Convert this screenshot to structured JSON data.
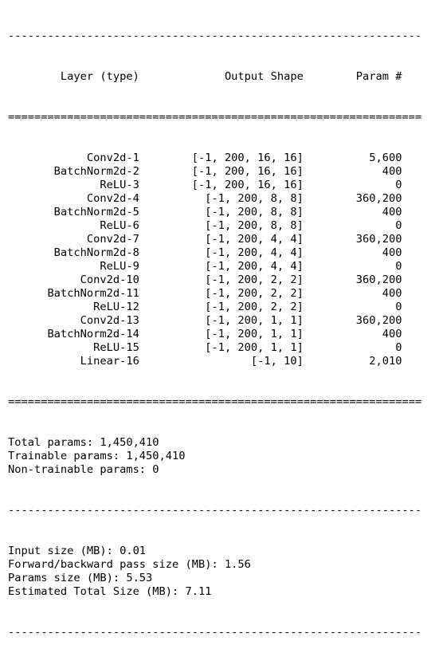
{
  "separators": {
    "dash": "----------------------------------------------------------------",
    "equals": "================================================================"
  },
  "header": {
    "layer_col": "Layer (type)",
    "shape_col": "Output Shape",
    "param_col": "Param #"
  },
  "layers": [
    {
      "name": "Conv2d-1",
      "shape": "[-1, 200, 16, 16]",
      "params": "5,600"
    },
    {
      "name": "BatchNorm2d-2",
      "shape": "[-1, 200, 16, 16]",
      "params": "400"
    },
    {
      "name": "ReLU-3",
      "shape": "[-1, 200, 16, 16]",
      "params": "0"
    },
    {
      "name": "Conv2d-4",
      "shape": "[-1, 200, 8, 8]",
      "params": "360,200"
    },
    {
      "name": "BatchNorm2d-5",
      "shape": "[-1, 200, 8, 8]",
      "params": "400"
    },
    {
      "name": "ReLU-6",
      "shape": "[-1, 200, 8, 8]",
      "params": "0"
    },
    {
      "name": "Conv2d-7",
      "shape": "[-1, 200, 4, 4]",
      "params": "360,200"
    },
    {
      "name": "BatchNorm2d-8",
      "shape": "[-1, 200, 4, 4]",
      "params": "400"
    },
    {
      "name": "ReLU-9",
      "shape": "[-1, 200, 4, 4]",
      "params": "0"
    },
    {
      "name": "Conv2d-10",
      "shape": "[-1, 200, 2, 2]",
      "params": "360,200"
    },
    {
      "name": "BatchNorm2d-11",
      "shape": "[-1, 200, 2, 2]",
      "params": "400"
    },
    {
      "name": "ReLU-12",
      "shape": "[-1, 200, 2, 2]",
      "params": "0"
    },
    {
      "name": "Conv2d-13",
      "shape": "[-1, 200, 1, 1]",
      "params": "360,200"
    },
    {
      "name": "BatchNorm2d-14",
      "shape": "[-1, 200, 1, 1]",
      "params": "400"
    },
    {
      "name": "ReLU-15",
      "shape": "[-1, 200, 1, 1]",
      "params": "0"
    },
    {
      "name": "Linear-16",
      "shape": "[-1, 10]",
      "params": "2,010"
    }
  ],
  "params_summary": [
    "Total params: 1,450,410",
    "Trainable params: 1,450,410",
    "Non-trainable params: 0"
  ],
  "size_summary": [
    "Input size (MB): 0.01",
    "Forward/backward pass size (MB): 1.56",
    "Params size (MB): 5.53",
    "Estimated Total Size (MB): 7.11"
  ]
}
